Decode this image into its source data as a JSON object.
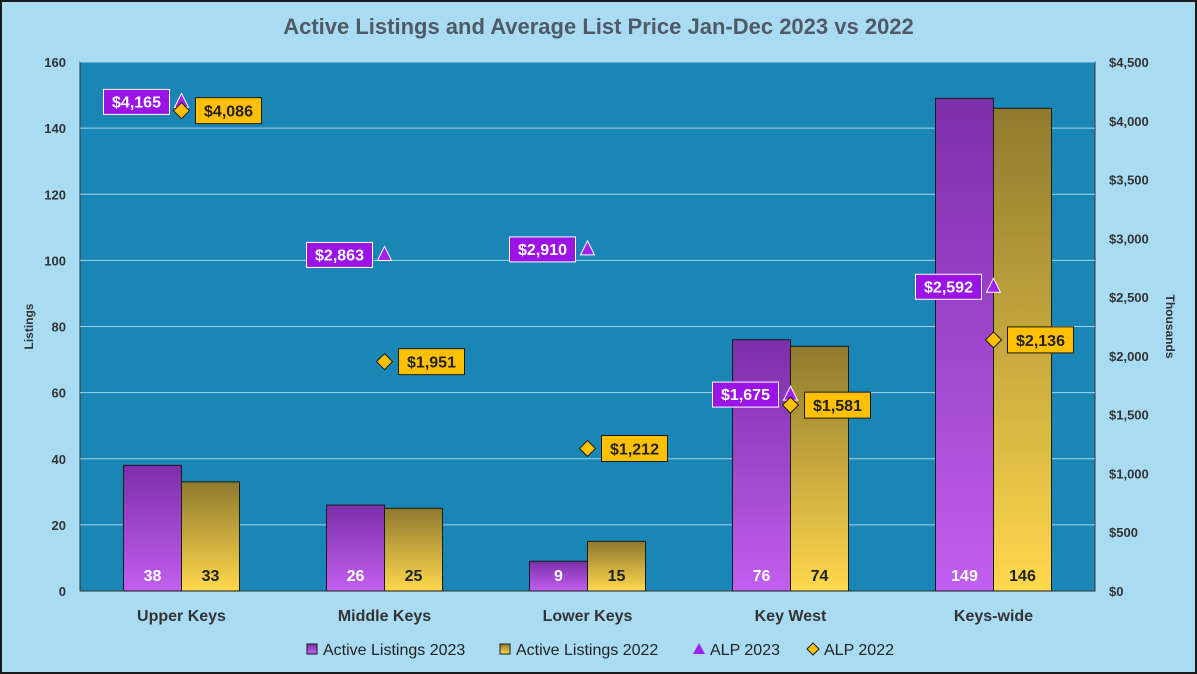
{
  "chart_data": {
    "type": "bar",
    "title": "Active Listings and Average List Price Jan-Dec 2023 vs 2022",
    "categories": [
      "Upper Keys",
      "Middle Keys",
      "Lower Keys",
      "Key West",
      "Keys-wide"
    ],
    "ylabel": "Listings",
    "y2label": "Thousands",
    "ylim": [
      0,
      160
    ],
    "y2lim": [
      0,
      4500
    ],
    "yticks": [
      0,
      20,
      40,
      60,
      80,
      100,
      120,
      140,
      160
    ],
    "y2ticks": [
      "$0",
      "$500",
      "$1,000",
      "$1,500",
      "$2,000",
      "$2,500",
      "$3,000",
      "$3,500",
      "$4,000",
      "$4,500"
    ],
    "grid": true,
    "legend": "bottom",
    "series": [
      {
        "name": "Active Listings 2023",
        "type": "bar",
        "axis": "left",
        "values": [
          38,
          26,
          9,
          76,
          149
        ],
        "color_top": "#7b2fa8",
        "color_bottom": "#c25ff0"
      },
      {
        "name": "Active Listings 2022",
        "type": "bar",
        "axis": "left",
        "values": [
          33,
          25,
          15,
          74,
          146
        ],
        "color_top": "#8f7a2f",
        "color_bottom": "#ffd84d"
      },
      {
        "name": "ALP 2023",
        "type": "marker",
        "axis": "right",
        "marker": "triangle",
        "values": [
          4165,
          2863,
          2910,
          1675,
          2592
        ],
        "labels": [
          "$4,165",
          "$2,863",
          "$2,910",
          "$1,675",
          "$2,592"
        ],
        "color": "#a020f0"
      },
      {
        "name": "ALP 2022",
        "type": "marker",
        "axis": "right",
        "marker": "diamond",
        "values": [
          4086,
          1951,
          1212,
          1581,
          2136
        ],
        "labels": [
          "$4,086",
          "$1,951",
          "$1,212",
          "$1,581",
          "$2,136"
        ],
        "color": "#ffc000"
      }
    ]
  }
}
